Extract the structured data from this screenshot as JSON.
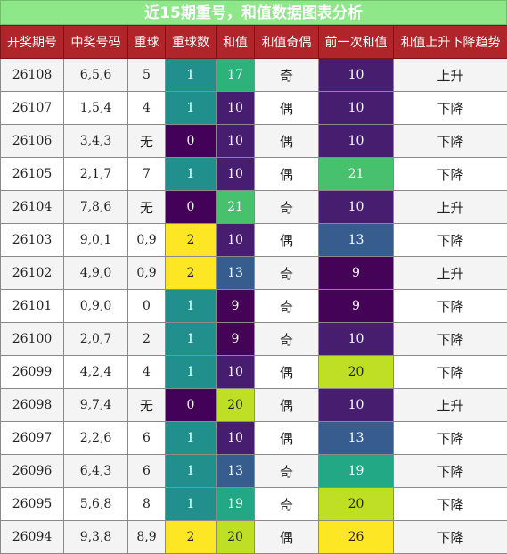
{
  "title": "近15期重号，和值数据图表分析",
  "colors": {
    "title_bg": "#8ee88a",
    "header_bg": "#b0252a",
    "heat": {
      "0": "#44015a",
      "1": "#21908d",
      "2": "#fde725",
      "9": "#450357",
      "10": "#471d6f",
      "13": "#365d8d",
      "17": "#2eb27c",
      "19": "#22a884",
      "20": "#bfdf24",
      "21": "#48c16e",
      "26": "#fde725"
    }
  },
  "chart_data": {
    "type": "table",
    "columns": [
      "开奖期号",
      "中奖号码",
      "重球",
      "重球数",
      "和值",
      "和值奇偶",
      "前一次和值",
      "和值上升下降趋势"
    ],
    "rows": [
      {
        "period": "26108",
        "numbers": "6,5,6",
        "repeat": "5",
        "repeat_count": 1,
        "sum": 17,
        "parity": "奇",
        "prev_sum": 10,
        "trend": "上升"
      },
      {
        "period": "26107",
        "numbers": "1,5,4",
        "repeat": "4",
        "repeat_count": 1,
        "sum": 10,
        "parity": "偶",
        "prev_sum": 10,
        "trend": "下降"
      },
      {
        "period": "26106",
        "numbers": "3,4,3",
        "repeat": "无",
        "repeat_count": 0,
        "sum": 10,
        "parity": "偶",
        "prev_sum": 10,
        "trend": "下降"
      },
      {
        "period": "26105",
        "numbers": "2,1,7",
        "repeat": "7",
        "repeat_count": 1,
        "sum": 10,
        "parity": "偶",
        "prev_sum": 21,
        "trend": "下降"
      },
      {
        "period": "26104",
        "numbers": "7,8,6",
        "repeat": "无",
        "repeat_count": 0,
        "sum": 21,
        "parity": "奇",
        "prev_sum": 10,
        "trend": "上升"
      },
      {
        "period": "26103",
        "numbers": "9,0,1",
        "repeat": "0,9",
        "repeat_count": 2,
        "sum": 10,
        "parity": "偶",
        "prev_sum": 13,
        "trend": "下降"
      },
      {
        "period": "26102",
        "numbers": "4,9,0",
        "repeat": "0,9",
        "repeat_count": 2,
        "sum": 13,
        "parity": "奇",
        "prev_sum": 9,
        "trend": "上升"
      },
      {
        "period": "26101",
        "numbers": "0,9,0",
        "repeat": "0",
        "repeat_count": 1,
        "sum": 9,
        "parity": "奇",
        "prev_sum": 9,
        "trend": "下降"
      },
      {
        "period": "26100",
        "numbers": "2,0,7",
        "repeat": "2",
        "repeat_count": 1,
        "sum": 9,
        "parity": "奇",
        "prev_sum": 10,
        "trend": "下降"
      },
      {
        "period": "26099",
        "numbers": "4,2,4",
        "repeat": "4",
        "repeat_count": 1,
        "sum": 10,
        "parity": "偶",
        "prev_sum": 20,
        "trend": "下降"
      },
      {
        "period": "26098",
        "numbers": "9,7,4",
        "repeat": "无",
        "repeat_count": 0,
        "sum": 20,
        "parity": "偶",
        "prev_sum": 10,
        "trend": "上升"
      },
      {
        "period": "26097",
        "numbers": "2,2,6",
        "repeat": "6",
        "repeat_count": 1,
        "sum": 10,
        "parity": "偶",
        "prev_sum": 13,
        "trend": "下降"
      },
      {
        "period": "26096",
        "numbers": "6,4,3",
        "repeat": "6",
        "repeat_count": 1,
        "sum": 13,
        "parity": "奇",
        "prev_sum": 19,
        "trend": "下降"
      },
      {
        "period": "26095",
        "numbers": "5,6,8",
        "repeat": "8",
        "repeat_count": 1,
        "sum": 19,
        "parity": "奇",
        "prev_sum": 20,
        "trend": "下降"
      },
      {
        "period": "26094",
        "numbers": "9,3,8",
        "repeat": "8,9",
        "repeat_count": 2,
        "sum": 20,
        "parity": "偶",
        "prev_sum": 26,
        "trend": "下降"
      }
    ]
  }
}
